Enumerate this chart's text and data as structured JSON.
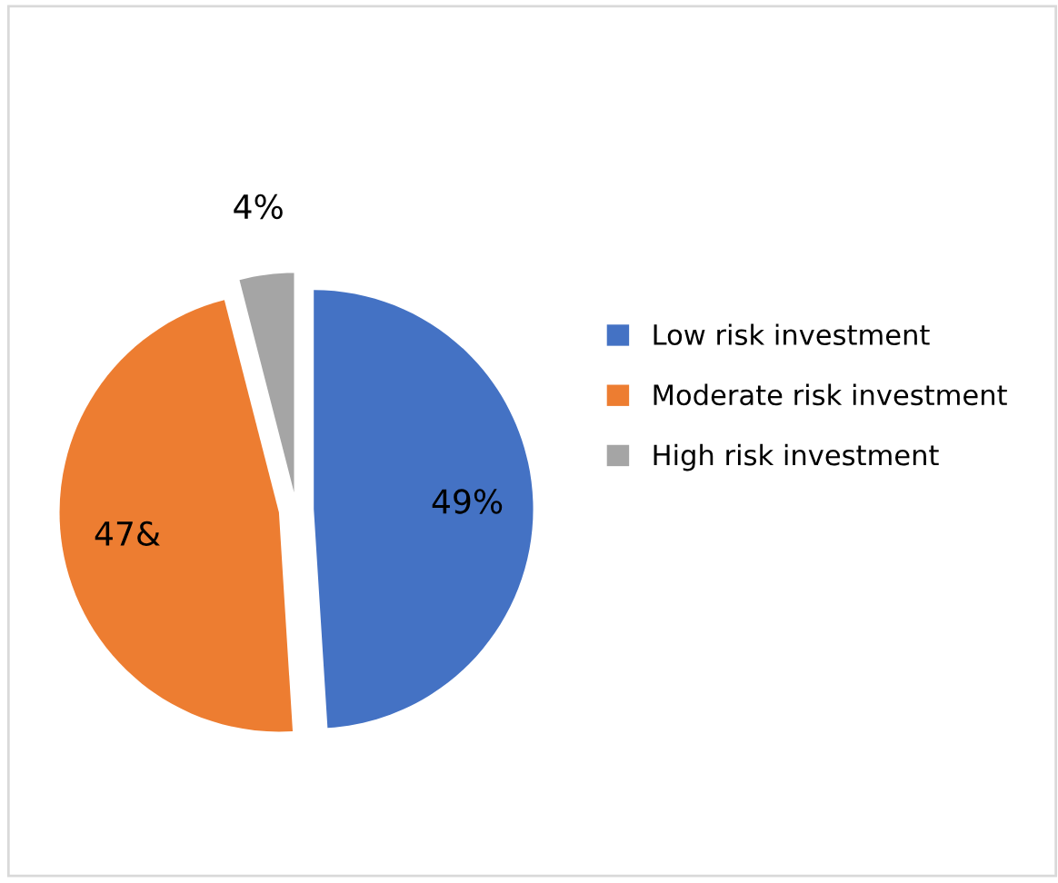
{
  "chart_data": {
    "type": "pie",
    "categories": [
      "Low risk investment",
      "Moderate risk investment",
      "High risk investment"
    ],
    "values": [
      49,
      47,
      4
    ],
    "colors": [
      "#4472c4",
      "#ed7d31",
      "#a5a5a5"
    ],
    "value_labels": [
      "49%",
      "47&",
      "4%"
    ],
    "legend": "right"
  }
}
